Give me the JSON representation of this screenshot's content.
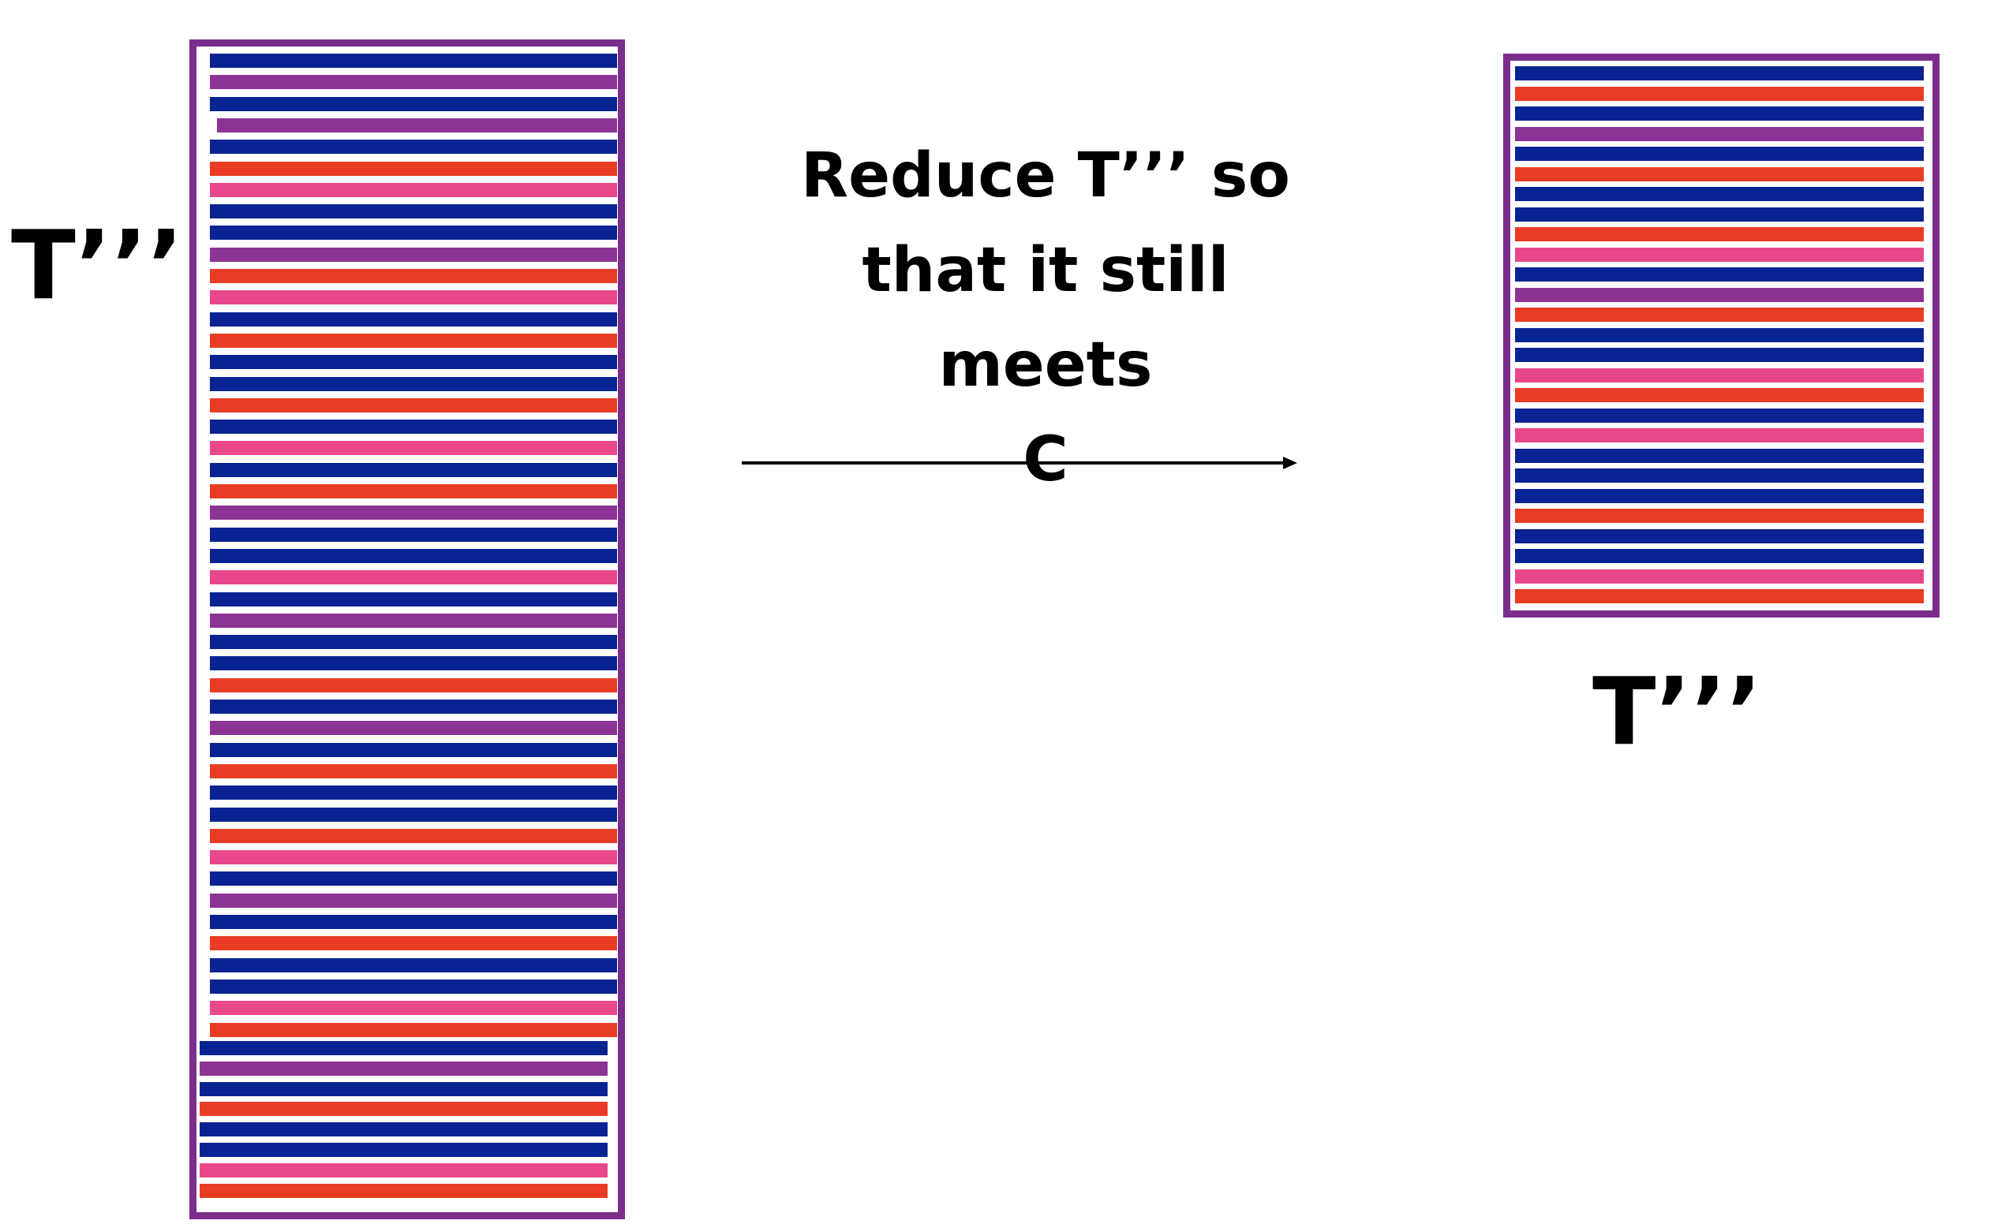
{
  "labels": {
    "left": "T’’’",
    "right": "T’’’"
  },
  "caption": {
    "line1": "Reduce T’’’ so",
    "line2": "that it still meets",
    "line3": "C"
  },
  "colors": {
    "blue": "#0a2393",
    "purple": "#8b3496",
    "red": "#e83c24",
    "pink": "#e8488a",
    "frame": "#7b2d8c",
    "text": "#000000"
  },
  "left_stripes": [
    "blue",
    "purple",
    "blue",
    "purple",
    "blue",
    "red",
    "pink",
    "blue",
    "blue",
    "purple",
    "red",
    "pink",
    "blue",
    "red",
    "blue",
    "blue",
    "red",
    "blue",
    "pink",
    "blue",
    "red",
    "purple",
    "blue",
    "blue",
    "pink",
    "blue",
    "purple",
    "blue",
    "blue",
    "red",
    "blue",
    "purple",
    "blue",
    "red",
    "blue",
    "blue",
    "red",
    "pink",
    "blue",
    "purple",
    "blue",
    "red",
    "blue",
    "blue",
    "pink",
    "red",
    "blue",
    "purple",
    "blue",
    "red",
    "blue",
    "blue",
    "pink",
    "red"
  ],
  "right_stripes": [
    "blue",
    "red",
    "blue",
    "purple",
    "blue",
    "red",
    "blue",
    "blue",
    "red",
    "pink",
    "blue",
    "purple",
    "red",
    "blue",
    "blue",
    "pink",
    "red",
    "blue",
    "pink",
    "blue",
    "blue",
    "blue",
    "red",
    "blue",
    "blue",
    "pink",
    "red"
  ]
}
